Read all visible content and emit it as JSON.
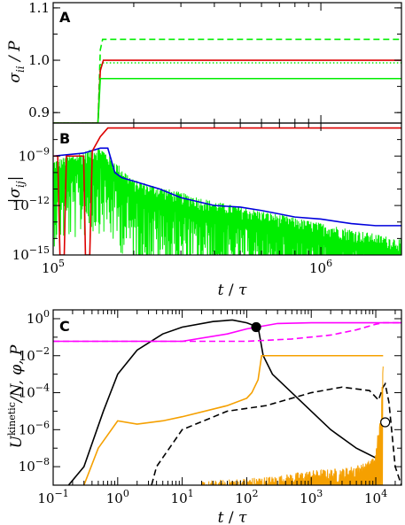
{
  "chart_data": [
    {
      "panel": "A",
      "type": "line",
      "ylabel": "σii / P",
      "xscale": "log",
      "xlim": [
        100000,
        2000000
      ],
      "ylim": [
        0.88,
        1.11
      ],
      "yticks": [
        {
          "v": 0.9,
          "label": "0.9"
        },
        {
          "v": 1.0,
          "label": "1.0"
        },
        {
          "v": 1.1,
          "label": "1.1"
        }
      ],
      "series": [
        {
          "color": "#00ee00",
          "style": "dashed",
          "points": [
            [
              100000,
              0.88
            ],
            [
              147000,
              0.88
            ],
            [
              150000,
              1.02
            ],
            [
              153000,
              1.04
            ],
            [
              2000000,
              1.04
            ]
          ]
        },
        {
          "color": "#00ee00",
          "style": "dotted",
          "points": [
            [
              100000,
              0.88
            ],
            [
              147000,
              0.88
            ],
            [
              150000,
              0.99
            ],
            [
              152000,
              0.995
            ],
            [
              2000000,
              0.995
            ]
          ]
        },
        {
          "color": "#dd0000",
          "style": "solid",
          "points": [
            [
              100000,
              0.88
            ],
            [
              147000,
              0.88
            ],
            [
              150000,
              0.98
            ],
            [
              154000,
              1.0
            ],
            [
              2000000,
              1.0
            ]
          ]
        },
        {
          "color": "#00ee00",
          "style": "solid",
          "points": [
            [
              100000,
              0.88
            ],
            [
              147000,
              0.88
            ],
            [
              150000,
              0.965
            ],
            [
              2000000,
              0.965
            ]
          ]
        }
      ]
    },
    {
      "panel": "B",
      "type": "line",
      "ylabel": "|σij|",
      "xlabel": "t / τ",
      "xscale": "log",
      "yscale": "log",
      "xlim": [
        100000,
        2000000
      ],
      "ylim": [
        1e-15,
        1e-07
      ],
      "xticks": [
        {
          "v": 100000,
          "label": "10^5"
        },
        {
          "v": 1000000,
          "label": "10^6"
        }
      ],
      "yticks": [
        {
          "v": 1e-15,
          "label": "10^-15"
        },
        {
          "v": 1e-12,
          "label": "10^-12"
        },
        {
          "v": 1e-09,
          "label": "10^-9"
        }
      ],
      "series": [
        {
          "color": "#00ee00",
          "style": "solid",
          "kind": "noisy-spikes",
          "base": [
            [
              100000,
              3e-10
            ],
            [
              150000,
              2e-09
            ],
            [
              200000,
              2e-11
            ],
            [
              400000,
              1e-12
            ],
            [
              800000,
              1e-13
            ],
            [
              2000000,
              5e-15
            ]
          ]
        },
        {
          "color": "#0000dd",
          "style": "solid",
          "points": [
            [
              100000,
              1e-09
            ],
            [
              130000,
              1.5e-09
            ],
            [
              150000,
              3e-09
            ],
            [
              160000,
              3e-09
            ],
            [
              170000,
              1e-10
            ],
            [
              180000,
              5e-11
            ],
            [
              200000,
              3e-11
            ],
            [
              250000,
              1e-11
            ],
            [
              300000,
              3e-12
            ],
            [
              400000,
              1e-12
            ],
            [
              500000,
              8e-13
            ],
            [
              600000,
              5e-13
            ],
            [
              800000,
              2e-13
            ],
            [
              1000000,
              1.5e-13
            ],
            [
              1300000,
              8e-14
            ],
            [
              1600000,
              6e-14
            ],
            [
              2000000,
              6e-14
            ]
          ]
        },
        {
          "color": "#dd0000",
          "style": "solid",
          "points": [
            [
              100000,
              1e-09
            ],
            [
              104000,
              1e-09
            ],
            [
              106000,
              1e-15
            ],
            [
              110000,
              1e-15
            ],
            [
              112000,
              1e-09
            ],
            [
              130000,
              1e-09
            ],
            [
              132000,
              1e-15
            ],
            [
              137000,
              1e-15
            ],
            [
              140000,
              2e-09
            ],
            [
              150000,
              1.5e-08
            ],
            [
              160000,
              5e-08
            ],
            [
              2000000,
              5e-08
            ]
          ]
        }
      ]
    },
    {
      "panel": "C",
      "type": "line",
      "ylabel": "U^kinetic/N, φ, P",
      "xlabel": "t / τ",
      "xscale": "log",
      "yscale": "log",
      "xlim": [
        0.1,
        25000
      ],
      "ylim": [
        1e-09,
        3
      ],
      "xticks": [
        {
          "v": 0.1,
          "label": "10^-1"
        },
        {
          "v": 1,
          "label": "10^0"
        },
        {
          "v": 10,
          "label": "10^1"
        },
        {
          "v": 100,
          "label": "10^2"
        },
        {
          "v": 1000,
          "label": "10^3"
        },
        {
          "v": 10000,
          "label": "10^4"
        }
      ],
      "yticks": [
        {
          "v": 1e-08,
          "label": "10^-8"
        },
        {
          "v": 1e-06,
          "label": "10^-6"
        },
        {
          "v": 0.0001,
          "label": "10^-4"
        },
        {
          "v": 0.01,
          "label": "10^-2"
        },
        {
          "v": 1,
          "label": "10^0"
        }
      ],
      "series": [
        {
          "color": "#000000",
          "style": "solid",
          "points": [
            [
              0.1,
              1e-10
            ],
            [
              0.3,
              1e-08
            ],
            [
              0.6,
              1e-05
            ],
            [
              1,
              0.001
            ],
            [
              2,
              0.02
            ],
            [
              5,
              0.15
            ],
            [
              10,
              0.35
            ],
            [
              30,
              0.7
            ],
            [
              60,
              0.85
            ],
            [
              100,
              0.6
            ],
            [
              150,
              0.35
            ],
            [
              180,
              0.01
            ],
            [
              250,
              0.001
            ],
            [
              500,
              0.0001
            ],
            [
              1000,
              1e-05
            ],
            [
              2000,
              1e-06
            ],
            [
              5000,
              1e-07
            ],
            [
              10000,
              3e-08
            ],
            [
              12000,
              2e-08
            ]
          ]
        },
        {
          "color": "#000000",
          "style": "dashed",
          "points": [
            [
              2.8,
              1e-10
            ],
            [
              4,
              1e-08
            ],
            [
              10,
              1e-06
            ],
            [
              50,
              1e-05
            ],
            [
              200,
              2e-05
            ],
            [
              1000,
              0.0001
            ],
            [
              3000,
              0.0002
            ],
            [
              8000,
              0.00013
            ],
            [
              11000,
              4e-05
            ],
            [
              13000,
              0.0002
            ],
            [
              14000,
              0.0003
            ],
            [
              16000,
              3e-05
            ],
            [
              20000,
              1e-08
            ],
            [
              25000,
              1e-09
            ]
          ]
        },
        {
          "color": "#ff00ff",
          "style": "solid",
          "points": [
            [
              0.1,
              0.06
            ],
            [
              10,
              0.06
            ],
            [
              50,
              0.15
            ],
            [
              100,
              0.28
            ],
            [
              150,
              0.36
            ],
            [
              300,
              0.55
            ],
            [
              1000,
              0.6
            ],
            [
              25000,
              0.6
            ]
          ]
        },
        {
          "color": "#ff00ff",
          "style": "dashed",
          "points": [
            [
              0.1,
              0.06
            ],
            [
              100,
              0.06
            ],
            [
              500,
              0.08
            ],
            [
              2000,
              0.13
            ],
            [
              5000,
              0.25
            ],
            [
              10000,
              0.5
            ],
            [
              13000,
              0.6
            ],
            [
              25000,
              0.6
            ]
          ]
        },
        {
          "color": "#f5a000",
          "style": "solid",
          "points": [
            [
              0.3,
              1e-09
            ],
            [
              0.5,
              1e-07
            ],
            [
              1,
              3e-06
            ],
            [
              2,
              2e-06
            ],
            [
              5,
              3e-06
            ],
            [
              10,
              5e-06
            ],
            [
              50,
              2e-05
            ],
            [
              100,
              5e-05
            ],
            [
              120,
              0.0001
            ],
            [
              150,
              0.0005
            ],
            [
              170,
              0.01
            ],
            [
              13000,
              0.01
            ]
          ]
        },
        {
          "color": "#f5a000",
          "style": "solid",
          "kind": "noisy-floor",
          "points": [
            [
              20,
              1e-09
            ],
            [
              300,
              2e-09
            ],
            [
              1000,
              4e-09
            ],
            [
              3000,
              5e-09
            ],
            [
              7000,
              1e-08
            ],
            [
              10000,
              3e-08
            ],
            [
              11000,
              1e-06
            ],
            [
              12000,
              2e-06
            ],
            [
              13000,
              0.01
            ]
          ]
        }
      ],
      "markers": [
        {
          "x": 140,
          "y": 0.35,
          "fill": "#000000"
        },
        {
          "x": 14000,
          "y": 2.5e-06,
          "fill": "#ffffff"
        }
      ]
    }
  ],
  "panel_labels": {
    "a": "A",
    "b": "B",
    "c": "C"
  }
}
